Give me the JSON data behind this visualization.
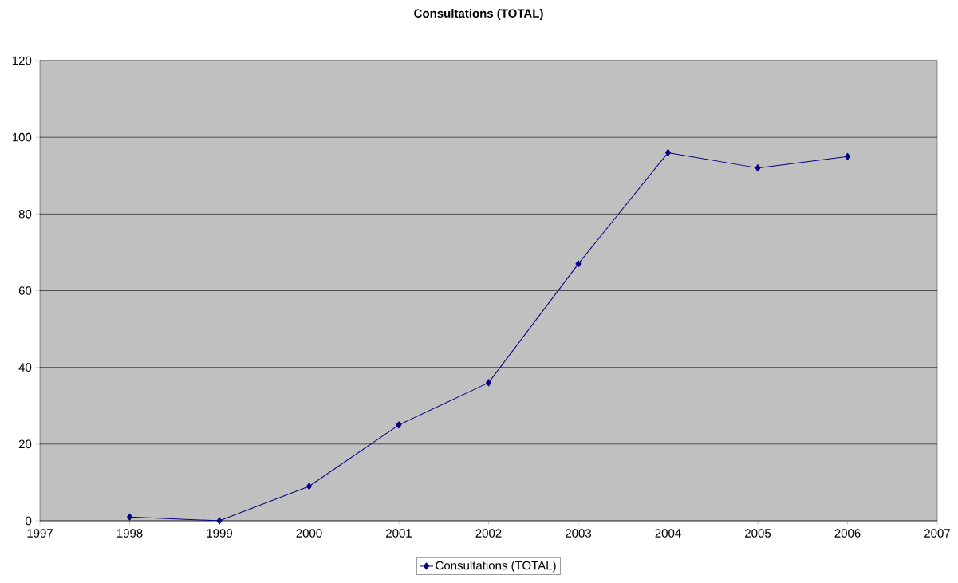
{
  "chart_data": {
    "type": "line",
    "title": "Consultations (TOTAL)",
    "x": [
      1998,
      1999,
      2000,
      2001,
      2002,
      2003,
      2004,
      2005,
      2006
    ],
    "series": [
      {
        "name": "Consultations (TOTAL)",
        "color": "#000080",
        "values": [
          1,
          0,
          9,
          25,
          36,
          67,
          96,
          92,
          95
        ]
      }
    ],
    "xlim": [
      1997,
      2007
    ],
    "xticks": [
      1997,
      1998,
      1999,
      2000,
      2001,
      2002,
      2003,
      2004,
      2005,
      2006,
      2007
    ],
    "ylim": [
      0,
      120
    ],
    "yticks": [
      0,
      20,
      40,
      60,
      80,
      100,
      120
    ],
    "grid": "y",
    "legend": "bottom",
    "marker": "diamond",
    "line_style": "solid"
  }
}
